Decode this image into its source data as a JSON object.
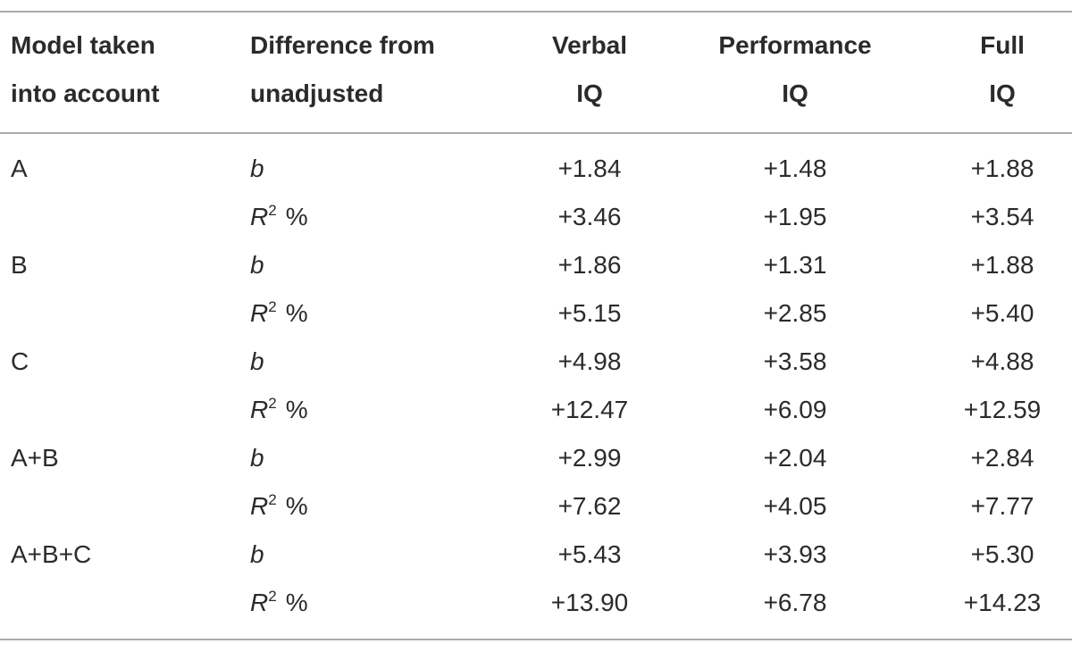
{
  "table": {
    "header": [
      [
        "Model taken",
        "into account"
      ],
      [
        "Difference from",
        "unadjusted"
      ],
      [
        "Verbal",
        "IQ"
      ],
      [
        "Performance",
        "IQ"
      ],
      [
        "Full",
        "IQ"
      ]
    ],
    "rows": [
      {
        "model": "A",
        "stat": "b",
        "values": [
          "+1.84",
          "+1.48",
          "+1.88"
        ]
      },
      {
        "stat": {
          "base": "R",
          "sup": "2",
          "suffix": "%"
        },
        "values": [
          "+3.46",
          "+1.95",
          "+3.54"
        ]
      },
      {
        "model": "B",
        "stat": "b",
        "values": [
          "+1.86",
          "+1.31",
          "+1.88"
        ]
      },
      {
        "stat": {
          "base": "R",
          "sup": "2",
          "suffix": "%"
        },
        "values": [
          "+5.15",
          "+2.85",
          "+5.40"
        ]
      },
      {
        "model": "C",
        "stat": "b",
        "values": [
          "+4.98",
          "+3.58",
          "+4.88"
        ]
      },
      {
        "stat": {
          "base": "R",
          "sup": "2",
          "suffix": "%"
        },
        "values": [
          "+12.47",
          "+6.09",
          "+12.59"
        ]
      },
      {
        "model": "A+B",
        "stat": "b",
        "values": [
          "+2.99",
          "+2.04",
          "+2.84"
        ]
      },
      {
        "stat": {
          "base": "R",
          "sup": "2",
          "suffix": "%"
        },
        "values": [
          "+7.62",
          "+4.05",
          "+7.77"
        ]
      },
      {
        "model": "A+B+C",
        "stat": "b",
        "values": [
          "+5.43",
          "+3.93",
          "+5.30"
        ]
      },
      {
        "stat": {
          "base": "R",
          "sup": "2",
          "suffix": "%"
        },
        "values": [
          "+13.90",
          "+6.78",
          "+14.23"
        ]
      }
    ]
  }
}
